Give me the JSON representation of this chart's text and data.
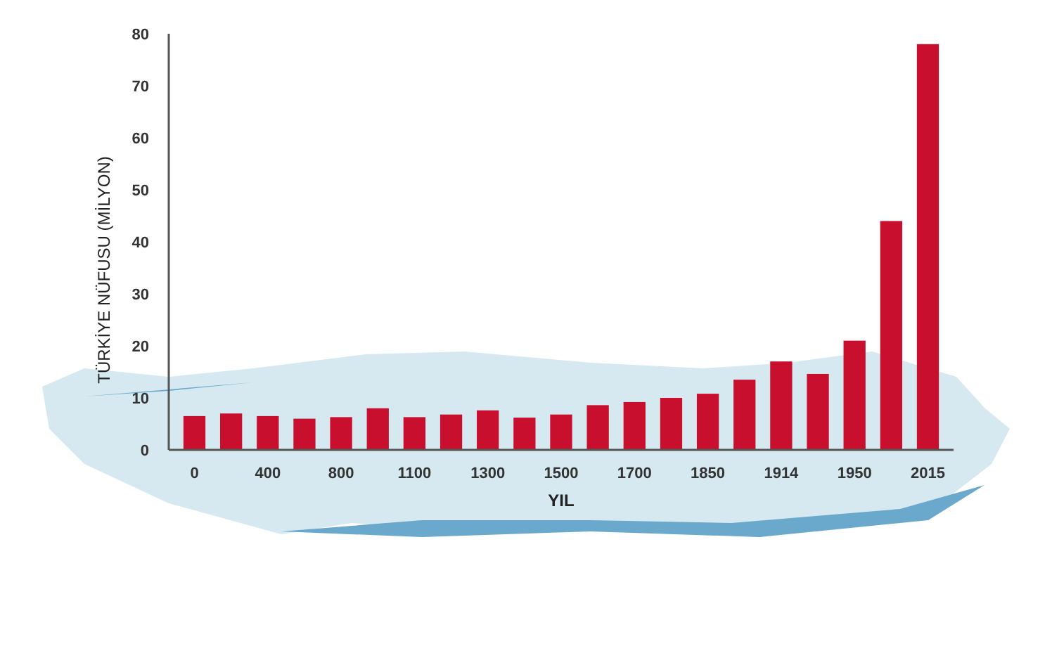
{
  "chart_data": {
    "type": "bar",
    "xlabel": "YIL",
    "ylabel": "TÜRKİYE NÜFUSU (MİLYON)",
    "categories": [
      "0",
      null,
      "400",
      null,
      "800",
      null,
      "1100",
      null,
      "1300",
      null,
      "1500",
      null,
      "1700",
      null,
      "1850",
      null,
      "1914",
      null,
      "1950",
      null,
      "2015"
    ],
    "values": [
      6.5,
      7,
      6.5,
      6,
      6.3,
      8,
      6.3,
      6.8,
      7.6,
      6.2,
      6.8,
      8.6,
      9.2,
      10,
      10.8,
      13.5,
      17,
      14.6,
      21,
      44,
      78
    ],
    "color": "#c8102e",
    "ylim": [
      0,
      80
    ],
    "yticks": [
      0,
      10,
      20,
      30,
      40,
      50,
      60,
      70,
      80
    ],
    "grid": false
  }
}
